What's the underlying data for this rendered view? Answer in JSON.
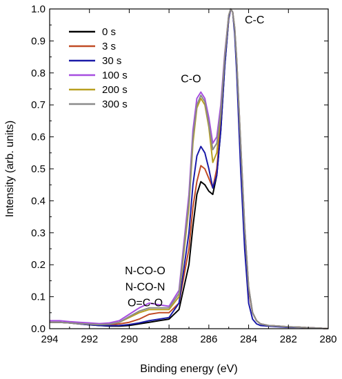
{
  "chart_data": {
    "type": "line",
    "xlabel": "Binding energy (eV)",
    "ylabel": "Intensity (arb. units)",
    "xlim": [
      294,
      280
    ],
    "ylim": [
      0.0,
      1.0
    ],
    "x_reversed": true,
    "xticks": [
      294,
      292,
      290,
      288,
      286,
      284,
      282,
      280
    ],
    "yticks": [
      0.0,
      0.1,
      0.2,
      0.3,
      0.4,
      0.5,
      0.6,
      0.7,
      0.8,
      0.9,
      1.0
    ],
    "ytick_labels": [
      "0.0",
      "0.1",
      "0.2",
      "0.3",
      "0.4",
      "0.5",
      "0.6",
      "0.7",
      "0.8",
      "0.9",
      "1.0"
    ],
    "grid": false,
    "legend_position": "top-left",
    "annotations": [
      {
        "text": "C-C",
        "x": 283.7,
        "y": 0.955
      },
      {
        "text": "C-O",
        "x": 286.9,
        "y": 0.77
      },
      {
        "text": "N-CO-O",
        "x": 289.2,
        "y": 0.17
      },
      {
        "text": "N-CO-N",
        "x": 289.2,
        "y": 0.12
      },
      {
        "text": "O=C-O",
        "x": 289.2,
        "y": 0.07
      }
    ],
    "x": [
      294,
      293.5,
      293,
      292.5,
      292,
      291.5,
      291,
      290.5,
      290,
      289.5,
      289,
      288.5,
      288,
      287.5,
      287,
      286.8,
      286.6,
      286.4,
      286.2,
      286,
      285.8,
      285.6,
      285.4,
      285.2,
      285,
      284.9,
      284.8,
      284.7,
      284.6,
      284.4,
      284.2,
      284,
      283.8,
      283.6,
      283.4,
      283,
      282.5,
      282,
      281.5,
      281,
      280.5,
      280
    ],
    "series": [
      {
        "name": "0 s",
        "color": "#000000",
        "values": [
          0.02,
          0.02,
          0.018,
          0.015,
          0.012,
          0.01,
          0.008,
          0.008,
          0.01,
          0.015,
          0.02,
          0.025,
          0.03,
          0.06,
          0.2,
          0.32,
          0.42,
          0.46,
          0.45,
          0.43,
          0.42,
          0.48,
          0.62,
          0.82,
          0.97,
          1.0,
          0.99,
          0.93,
          0.82,
          0.55,
          0.3,
          0.12,
          0.05,
          0.025,
          0.015,
          0.01,
          0.008,
          0.005,
          0.005,
          0.003,
          0.002,
          0.0
        ]
      },
      {
        "name": "3 s",
        "color": "#c04a24",
        "values": [
          0.02,
          0.02,
          0.018,
          0.015,
          0.013,
          0.012,
          0.012,
          0.015,
          0.02,
          0.03,
          0.045,
          0.05,
          0.05,
          0.08,
          0.25,
          0.38,
          0.46,
          0.51,
          0.5,
          0.47,
          0.44,
          0.5,
          0.64,
          0.83,
          0.97,
          1.0,
          0.99,
          0.93,
          0.82,
          0.55,
          0.3,
          0.12,
          0.05,
          0.025,
          0.015,
          0.01,
          0.008,
          0.005,
          0.005,
          0.003,
          0.002,
          0.0
        ]
      },
      {
        "name": "30 s",
        "color": "#1a1aa8",
        "values": [
          0.02,
          0.02,
          0.018,
          0.015,
          0.012,
          0.01,
          0.009,
          0.01,
          0.013,
          0.018,
          0.025,
          0.03,
          0.035,
          0.08,
          0.3,
          0.45,
          0.54,
          0.57,
          0.55,
          0.5,
          0.44,
          0.48,
          0.62,
          0.82,
          0.97,
          1.0,
          0.99,
          0.92,
          0.8,
          0.5,
          0.25,
          0.08,
          0.03,
          0.015,
          0.01,
          0.008,
          0.006,
          0.004,
          0.004,
          0.003,
          0.002,
          0.0
        ]
      },
      {
        "name": "100 s",
        "color": "#a64de0",
        "values": [
          0.025,
          0.025,
          0.022,
          0.02,
          0.018,
          0.016,
          0.018,
          0.025,
          0.045,
          0.065,
          0.08,
          0.075,
          0.07,
          0.12,
          0.42,
          0.62,
          0.72,
          0.74,
          0.72,
          0.66,
          0.58,
          0.6,
          0.7,
          0.86,
          0.98,
          1.0,
          0.99,
          0.94,
          0.84,
          0.58,
          0.32,
          0.13,
          0.05,
          0.025,
          0.015,
          0.01,
          0.008,
          0.006,
          0.005,
          0.003,
          0.002,
          0.0
        ]
      },
      {
        "name": "200 s",
        "color": "#b8a020",
        "values": [
          0.02,
          0.02,
          0.018,
          0.016,
          0.014,
          0.013,
          0.014,
          0.02,
          0.035,
          0.05,
          0.06,
          0.06,
          0.06,
          0.1,
          0.38,
          0.58,
          0.69,
          0.72,
          0.7,
          0.63,
          0.52,
          0.55,
          0.67,
          0.85,
          0.98,
          1.0,
          0.99,
          0.94,
          0.84,
          0.58,
          0.32,
          0.13,
          0.05,
          0.025,
          0.015,
          0.01,
          0.008,
          0.006,
          0.005,
          0.003,
          0.002,
          0.0
        ]
      },
      {
        "name": "300 s",
        "color": "#8a8a8a",
        "values": [
          0.02,
          0.02,
          0.018,
          0.016,
          0.014,
          0.013,
          0.014,
          0.02,
          0.038,
          0.055,
          0.065,
          0.065,
          0.065,
          0.11,
          0.4,
          0.6,
          0.7,
          0.73,
          0.71,
          0.64,
          0.56,
          0.58,
          0.68,
          0.85,
          0.98,
          1.0,
          0.99,
          0.94,
          0.84,
          0.58,
          0.32,
          0.13,
          0.05,
          0.025,
          0.015,
          0.01,
          0.008,
          0.006,
          0.005,
          0.003,
          0.002,
          0.0
        ]
      }
    ]
  }
}
